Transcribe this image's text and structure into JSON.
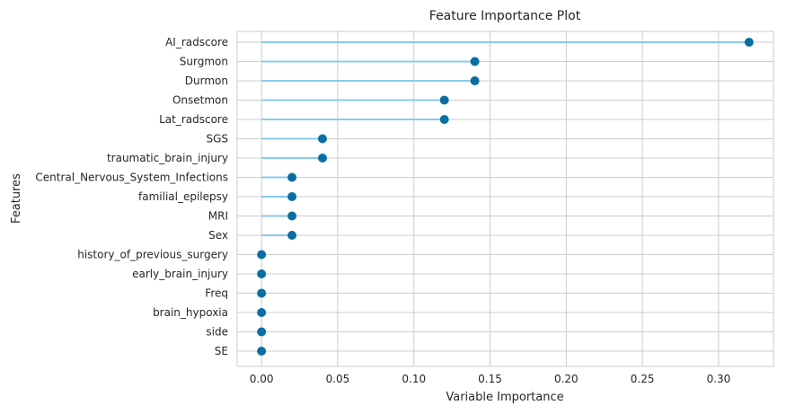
{
  "chart_data": {
    "type": "lollipop",
    "title": "Feature Importance Plot",
    "xlabel": "Variable Importance",
    "ylabel": "Features",
    "xlim": [
      -0.016,
      0.336
    ],
    "xticks": [
      0.0,
      0.05,
      0.1,
      0.15,
      0.2,
      0.25,
      0.3
    ],
    "xtick_labels": [
      "0.00",
      "0.05",
      "0.10",
      "0.15",
      "0.20",
      "0.25",
      "0.30"
    ],
    "grid": true,
    "colors": {
      "stem": "#89cbed",
      "marker": "#0b6ea3"
    },
    "categories": [
      "AI_radscore",
      "Surgmon",
      "Durmon",
      "Onsetmon",
      "Lat_radscore",
      "SGS",
      "traumatic_brain_injury",
      "Central_Nervous_System_Infections",
      "familial_epilepsy",
      "MRI",
      "Sex",
      "history_of_previous_surgery",
      "early_brain_injury",
      "Freq",
      "brain_hypoxia",
      "side",
      "SE"
    ],
    "values": [
      0.32,
      0.14,
      0.14,
      0.12,
      0.12,
      0.04,
      0.04,
      0.02,
      0.02,
      0.02,
      0.02,
      0.0,
      0.0,
      0.0,
      0.0,
      0.0,
      0.0
    ]
  }
}
